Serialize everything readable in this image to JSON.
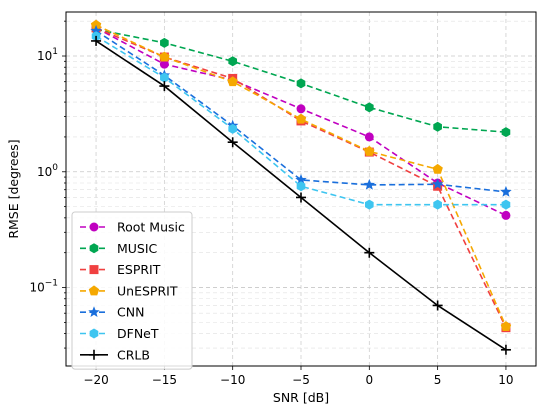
{
  "chart_data": {
    "type": "line",
    "xlabel": "SNR [dB]",
    "ylabel": "RMSE [degrees]",
    "x": [
      -20,
      -15,
      -10,
      -5,
      0,
      5,
      10
    ],
    "xticks": [
      "−20",
      "−15",
      "−10",
      "−5",
      "0",
      "5",
      "10"
    ],
    "yscale": "log",
    "ylim": [
      0.021,
      24
    ],
    "xlim": [
      -22.2,
      12.2
    ],
    "yticks": [
      {
        "value": 0.1,
        "base": "10",
        "exp": "−1"
      },
      {
        "value": 1,
        "base": "10",
        "exp": "0"
      },
      {
        "value": 10,
        "base": "10",
        "exp": "1"
      }
    ],
    "grid": true,
    "legend_position": "lower-left",
    "series": [
      {
        "name": "Root Music",
        "color": "#c000c0",
        "marker": "circle",
        "dash": "dashed",
        "values": [
          17.5,
          8.5,
          6.2,
          3.5,
          2.0,
          0.8,
          0.42
        ]
      },
      {
        "name": "MUSIC",
        "color": "#00a651",
        "marker": "hexagon",
        "dash": "dashed",
        "values": [
          17.0,
          13.0,
          9.0,
          5.8,
          3.6,
          2.45,
          2.2
        ]
      },
      {
        "name": "ESPRIT",
        "color": "#f04040",
        "marker": "square",
        "dash": "dashed",
        "values": [
          17.5,
          9.8,
          6.4,
          2.75,
          1.48,
          0.75,
          0.045
        ]
      },
      {
        "name": "UnESPRIT",
        "color": "#f5a800",
        "marker": "pentagon",
        "dash": "dashed",
        "values": [
          18.5,
          9.8,
          6.0,
          2.85,
          1.5,
          1.05,
          0.046
        ]
      },
      {
        "name": "CNN",
        "color": "#1a6fdc",
        "marker": "star",
        "dash": "dashed",
        "values": [
          16.5,
          6.8,
          2.5,
          0.85,
          0.77,
          0.78,
          0.67
        ]
      },
      {
        "name": "DFNeT",
        "color": "#3ec5f0",
        "marker": "hexagon",
        "dash": "dashed",
        "values": [
          14.8,
          6.5,
          2.35,
          0.75,
          0.52,
          0.52,
          0.52
        ]
      },
      {
        "name": "CRLB",
        "color": "#000000",
        "marker": "plus",
        "dash": "solid",
        "values": [
          13.5,
          5.5,
          1.8,
          0.6,
          0.2,
          0.07,
          0.029
        ]
      }
    ]
  }
}
